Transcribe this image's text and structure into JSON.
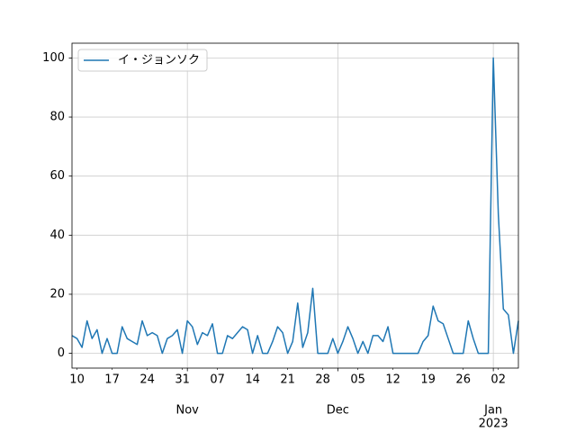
{
  "chart_data": {
    "type": "line",
    "x": [
      "2022-10-09",
      "2022-10-10",
      "2022-10-11",
      "2022-10-12",
      "2022-10-13",
      "2022-10-14",
      "2022-10-15",
      "2022-10-16",
      "2022-10-17",
      "2022-10-18",
      "2022-10-19",
      "2022-10-20",
      "2022-10-21",
      "2022-10-22",
      "2022-10-23",
      "2022-10-24",
      "2022-10-25",
      "2022-10-26",
      "2022-10-27",
      "2022-10-28",
      "2022-10-29",
      "2022-10-30",
      "2022-10-31",
      "2022-11-01",
      "2022-11-02",
      "2022-11-03",
      "2022-11-04",
      "2022-11-05",
      "2022-11-06",
      "2022-11-07",
      "2022-11-08",
      "2022-11-09",
      "2022-11-10",
      "2022-11-11",
      "2022-11-12",
      "2022-11-13",
      "2022-11-14",
      "2022-11-15",
      "2022-11-16",
      "2022-11-17",
      "2022-11-18",
      "2022-11-19",
      "2022-11-20",
      "2022-11-21",
      "2022-11-22",
      "2022-11-23",
      "2022-11-24",
      "2022-11-25",
      "2022-11-26",
      "2022-11-27",
      "2022-11-28",
      "2022-11-29",
      "2022-11-30",
      "2022-12-01",
      "2022-12-02",
      "2022-12-03",
      "2022-12-04",
      "2022-12-05",
      "2022-12-06",
      "2022-12-07",
      "2022-12-08",
      "2022-12-09",
      "2022-12-10",
      "2022-12-11",
      "2022-12-12",
      "2022-12-13",
      "2022-12-14",
      "2022-12-15",
      "2022-12-16",
      "2022-12-17",
      "2022-12-18",
      "2022-12-19",
      "2022-12-20",
      "2022-12-21",
      "2022-12-22",
      "2022-12-23",
      "2022-12-24",
      "2022-12-25",
      "2022-12-26",
      "2022-12-27",
      "2022-12-28",
      "2022-12-29",
      "2022-12-30",
      "2022-12-31",
      "2023-01-01",
      "2023-01-02",
      "2023-01-03",
      "2023-01-04",
      "2023-01-05",
      "2023-01-06"
    ],
    "series": [
      {
        "name": "イ・ジョンソク",
        "color": "#1f77b4",
        "values": [
          6,
          5,
          2,
          11,
          5,
          8,
          0,
          5,
          0,
          0,
          9,
          5,
          4,
          3,
          11,
          6,
          7,
          6,
          0,
          5,
          6,
          8,
          0,
          11,
          9,
          3,
          7,
          6,
          10,
          0,
          0,
          6,
          5,
          7,
          9,
          8,
          0,
          6,
          0,
          0,
          4,
          9,
          7,
          0,
          4,
          17,
          2,
          7,
          22,
          0,
          0,
          0,
          5,
          0,
          4,
          9,
          5,
          0,
          4,
          0,
          6,
          6,
          4,
          9,
          0,
          0,
          0,
          0,
          0,
          0,
          4,
          6,
          16,
          11,
          10,
          5,
          0,
          0,
          0,
          11,
          5,
          0,
          0,
          0,
          100,
          47,
          15,
          13,
          0,
          11
        ]
      }
    ],
    "xlim": [
      "2022-10-09",
      "2023-01-06"
    ],
    "xticks": [
      {
        "value": "2022-10-10",
        "label": "10"
      },
      {
        "value": "2022-10-17",
        "label": "17"
      },
      {
        "value": "2022-10-24",
        "label": "24"
      },
      {
        "value": "2022-10-31",
        "label": "31"
      },
      {
        "value": "2022-11-07",
        "label": "07"
      },
      {
        "value": "2022-11-14",
        "label": "14"
      },
      {
        "value": "2022-11-21",
        "label": "21"
      },
      {
        "value": "2022-11-28",
        "label": "28"
      },
      {
        "value": "2022-12-05",
        "label": "05"
      },
      {
        "value": "2022-12-12",
        "label": "12"
      },
      {
        "value": "2022-12-19",
        "label": "19"
      },
      {
        "value": "2022-12-26",
        "label": "26"
      },
      {
        "value": "2023-01-02",
        "label": "02"
      }
    ],
    "xticks_major": [
      {
        "value": "2022-11-01",
        "label": "Nov"
      },
      {
        "value": "2022-12-01",
        "label": "Dec"
      },
      {
        "value": "2023-01-01",
        "label": "Jan"
      }
    ],
    "year_label": "2023",
    "ylim": [
      -5,
      105
    ],
    "yticks": [
      0,
      20,
      40,
      60,
      80,
      100
    ],
    "grid": true,
    "legend": "upper left"
  }
}
